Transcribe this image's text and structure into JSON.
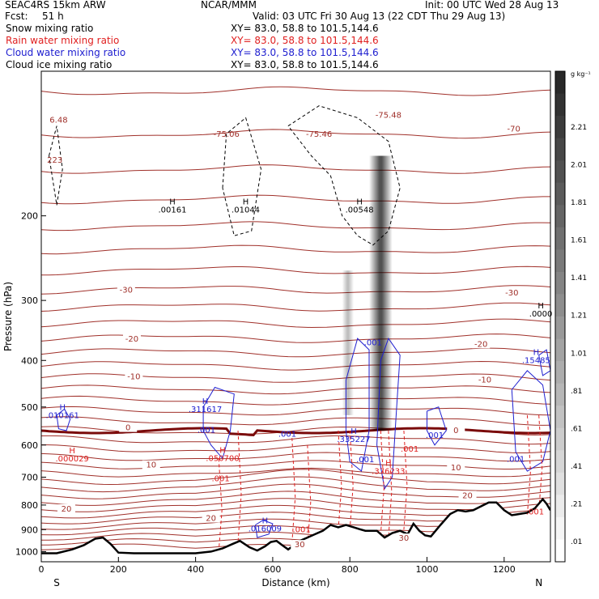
{
  "header": {
    "model": "SEAC4RS 15km ARW",
    "center": "NCAR/MMM",
    "init": "Init: 00 UTC Wed 28 Aug 13",
    "fcst_label": "Fcst:",
    "fcst_value": "51 h",
    "valid": "Valid: 03 UTC Fri 30 Aug 13 (22 CDT Thu 29 Aug 13)"
  },
  "legend": [
    {
      "name": "Snow mixing ratio",
      "xy": "XY=   83.0, 58.8 to 101.5,144.6",
      "color": "#000000"
    },
    {
      "name": "Rain water mixing ratio",
      "xy": "XY=   83.0, 58.8 to 101.5,144.6",
      "color": "#e02020"
    },
    {
      "name": "Cloud water mixing ratio",
      "xy": "XY=   83.0, 58.8 to 101.5,144.6",
      "color": "#2020d0"
    },
    {
      "name": "Cloud ice mixing ratio",
      "xy": "XY=   83.0, 58.8 to 101.5,144.6",
      "color": "#000000"
    }
  ],
  "chart_data": {
    "type": "contour cross-section",
    "xlabel": "Distance (km)",
    "ylabel": "Pressure (hPa)",
    "x_ticks": [
      0,
      200,
      400,
      600,
      800,
      1000,
      1200
    ],
    "y_ticks": [
      200,
      300,
      400,
      500,
      600,
      700,
      800,
      900,
      1000
    ],
    "xlim": [
      0,
      1320
    ],
    "ylim": [
      100,
      1050
    ],
    "y_scale": "log",
    "endpoints": {
      "left": "S",
      "right": "N"
    },
    "colorbar": {
      "unit": "g kg⁻¹",
      "ticks": [
        "2.21",
        "2.01",
        "1.81",
        "1.61",
        "1.41",
        "1.21",
        "1.01",
        ".81",
        ".61",
        ".41",
        ".21",
        ".01"
      ],
      "cmap": "white-to-black"
    },
    "temperature_contours": [
      {
        "label": "-70",
        "x": 1225,
        "p": 133
      },
      {
        "label": "-30",
        "x": 220,
        "p": 288
      },
      {
        "label": "-30",
        "x": 1220,
        "p": 292
      },
      {
        "label": "-20",
        "x": 235,
        "p": 364
      },
      {
        "label": "-20",
        "x": 1140,
        "p": 373
      },
      {
        "label": "-10",
        "x": 240,
        "p": 436
      },
      {
        "label": "-10",
        "x": 1150,
        "p": 443
      },
      {
        "label": "0",
        "x": 225,
        "p": 557
      },
      {
        "label": "0",
        "x": 1075,
        "p": 564
      },
      {
        "label": "10",
        "x": 285,
        "p": 666
      },
      {
        "label": "10",
        "x": 1075,
        "p": 675
      },
      {
        "label": "20",
        "x": 65,
        "p": 822
      },
      {
        "label": "20",
        "x": 440,
        "p": 860
      },
      {
        "label": "20",
        "x": 1105,
        "p": 771
      },
      {
        "label": "30",
        "x": 670,
        "p": 976
      },
      {
        "label": "30",
        "x": 940,
        "p": 946
      }
    ],
    "max_labels": [
      {
        "label": ".00161",
        "x": 340,
        "p": 197,
        "color": "#000000"
      },
      {
        "label": ".01044",
        "x": 530,
        "p": 197,
        "color": "#000000"
      },
      {
        "label": ".00548",
        "x": 825,
        "p": 197,
        "color": "#000000"
      },
      {
        "label": ".0000",
        "x": 1295,
        "p": 324,
        "color": "#000000"
      },
      {
        "label": ".010161",
        "x": 55,
        "p": 527,
        "color": "#2020d0"
      },
      {
        "label": ".311617",
        "x": 425,
        "p": 512,
        "color": "#2020d0"
      },
      {
        "label": ".15485",
        "x": 1283,
        "p": 405,
        "color": "#2020d0"
      },
      {
        "label": ".335227",
        "x": 810,
        "p": 591,
        "color": "#2020d0"
      },
      {
        "label": ".016009",
        "x": 580,
        "p": 908,
        "color": "#2020d0"
      },
      {
        "label": ".000029",
        "x": 80,
        "p": 649,
        "color": "#e02020"
      },
      {
        "label": ".050700",
        "x": 470,
        "p": 648,
        "color": "#e02020"
      },
      {
        "label": ".376233",
        "x": 900,
        "p": 689,
        "color": "#e02020"
      }
    ],
    "min_labels": [
      {
        "label": "-75.06",
        "x": 480,
        "p": 137
      },
      {
        "label": "-75.46",
        "x": 720,
        "p": 137
      },
      {
        "label": "-75.48",
        "x": 900,
        "p": 125
      },
      {
        "label": "6.48",
        "x": 45,
        "p": 128
      },
      {
        "label": "223",
        "x": 35,
        "p": 155
      }
    ],
    "contour_labels": [
      {
        "label": ".001",
        "x": 428,
        "p": 565,
        "color": "#2020d0"
      },
      {
        "label": ".001",
        "x": 638,
        "p": 577,
        "color": "#2020d0"
      },
      {
        "label": ".001",
        "x": 860,
        "p": 372,
        "color": "#2020d0"
      },
      {
        "label": ".001",
        "x": 1020,
        "p": 580,
        "color": "#2020d0"
      },
      {
        "label": ".001",
        "x": 840,
        "p": 652,
        "color": "#2020d0"
      },
      {
        "label": ".001",
        "x": 1230,
        "p": 650,
        "color": "#2020d0"
      },
      {
        "label": ".001",
        "x": 465,
        "p": 714,
        "color": "#e02020"
      },
      {
        "label": ".001",
        "x": 675,
        "p": 911,
        "color": "#e02020"
      },
      {
        "label": ".001",
        "x": 955,
        "p": 620,
        "color": "#e02020"
      },
      {
        "label": ".001",
        "x": 1280,
        "p": 836,
        "color": "#e02020"
      }
    ],
    "terrain": [
      [
        0,
        1008
      ],
      [
        40,
        1008
      ],
      [
        80,
        990
      ],
      [
        110,
        970
      ],
      [
        140,
        940
      ],
      [
        160,
        935
      ],
      [
        180,
        965
      ],
      [
        200,
        1005
      ],
      [
        240,
        1008
      ],
      [
        300,
        1008
      ],
      [
        400,
        1008
      ],
      [
        440,
        1000
      ],
      [
        470,
        985
      ],
      [
        495,
        965
      ],
      [
        515,
        950
      ],
      [
        540,
        980
      ],
      [
        560,
        995
      ],
      [
        580,
        975
      ],
      [
        595,
        955
      ],
      [
        610,
        950
      ],
      [
        625,
        970
      ],
      [
        640,
        990
      ],
      [
        655,
        970
      ],
      [
        670,
        950
      ],
      [
        690,
        935
      ],
      [
        710,
        920
      ],
      [
        730,
        905
      ],
      [
        750,
        880
      ],
      [
        770,
        890
      ],
      [
        790,
        880
      ],
      [
        810,
        890
      ],
      [
        825,
        898
      ],
      [
        840,
        905
      ],
      [
        870,
        905
      ],
      [
        890,
        935
      ],
      [
        910,
        915
      ],
      [
        930,
        905
      ],
      [
        950,
        920
      ],
      [
        965,
        875
      ],
      [
        980,
        905
      ],
      [
        995,
        925
      ],
      [
        1010,
        930
      ],
      [
        1035,
        880
      ],
      [
        1060,
        835
      ],
      [
        1080,
        820
      ],
      [
        1100,
        825
      ],
      [
        1120,
        820
      ],
      [
        1140,
        805
      ],
      [
        1160,
        790
      ],
      [
        1180,
        790
      ],
      [
        1200,
        820
      ],
      [
        1220,
        840
      ],
      [
        1260,
        830
      ],
      [
        1280,
        812
      ],
      [
        1300,
        778
      ],
      [
        1310,
        795
      ],
      [
        1320,
        820
      ]
    ]
  }
}
